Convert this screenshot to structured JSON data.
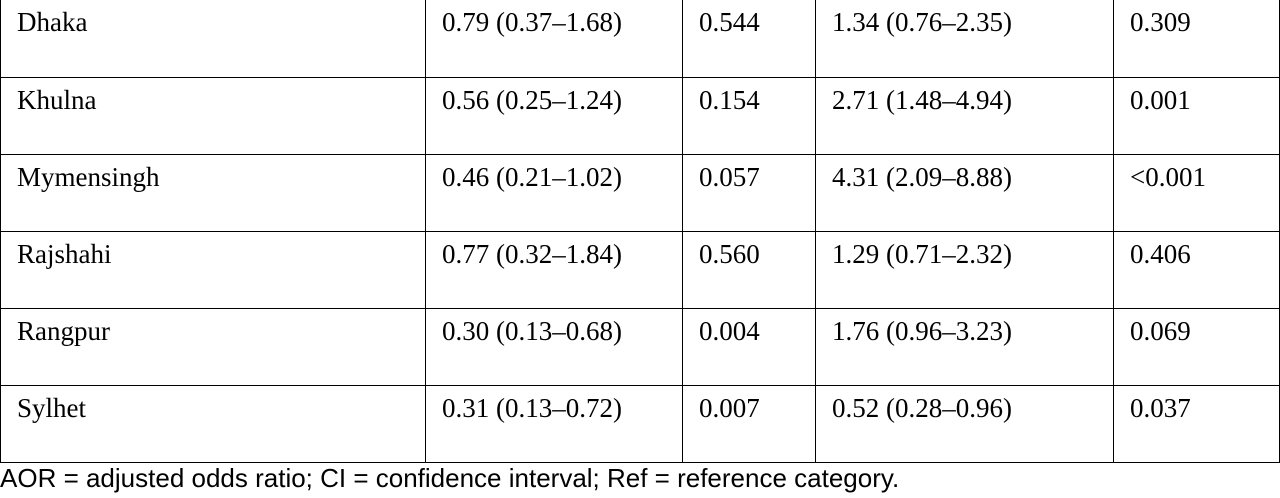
{
  "table": {
    "rows": [
      {
        "region": "Dhaka",
        "aor1": "0.79 (0.37–1.68)",
        "p1": "0.544",
        "aor2": "1.34 (0.76–2.35)",
        "p2": "0.309"
      },
      {
        "region": "Khulna",
        "aor1": "0.56 (0.25–1.24)",
        "p1": "0.154",
        "aor2": "2.71 (1.48–4.94)",
        "p2": "0.001"
      },
      {
        "region": "Mymensingh",
        "aor1": "0.46 (0.21–1.02)",
        "p1": "0.057",
        "aor2": "4.31 (2.09–8.88)",
        "p2": "<0.001"
      },
      {
        "region": "Rajshahi",
        "aor1": "0.77 (0.32–1.84)",
        "p1": "0.560",
        "aor2": "1.29 (0.71–2.32)",
        "p2": "0.406"
      },
      {
        "region": "Rangpur",
        "aor1": "0.30 (0.13–0.68)",
        "p1": "0.004",
        "aor2": "1.76 (0.96–3.23)",
        "p2": "0.069"
      },
      {
        "region": "Sylhet",
        "aor1": "0.31 (0.13–0.72)",
        "p1": "0.007",
        "aor2": "0.52 (0.28–0.96)",
        "p2": "0.037"
      }
    ]
  },
  "footnote": "AOR = adjusted odds ratio; CI = confidence interval; Ref = reference category."
}
